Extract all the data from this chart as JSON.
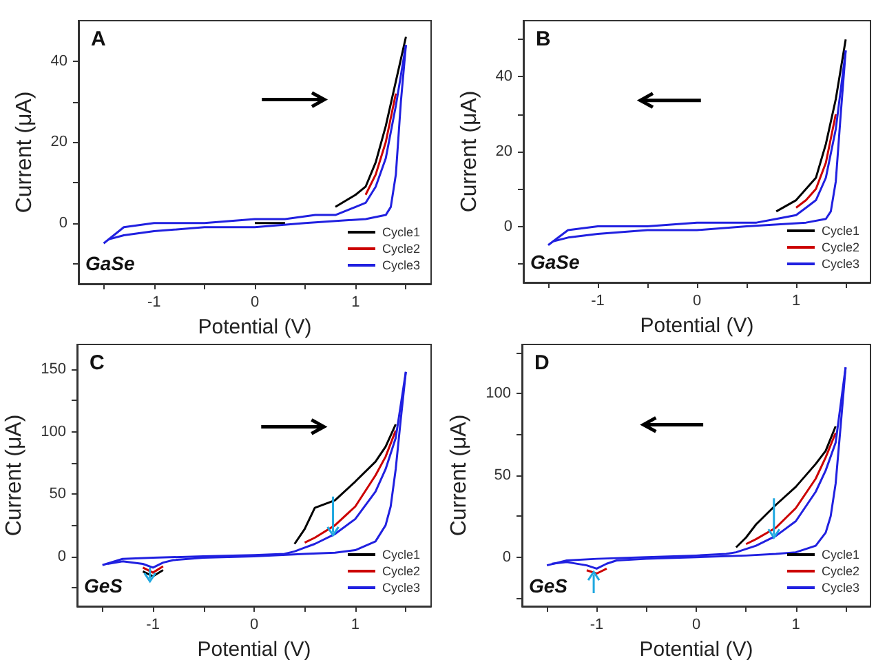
{
  "chart_data": [
    {
      "type": "line",
      "xlabel": "Potential (V)",
      "ylabel": "Current (μA)",
      "annotations": [
        "A",
        "GaSe"
      ],
      "legend": "bottom right",
      "marker": "none",
      "xlim": [
        -1.75,
        1.75
      ],
      "ylim": [
        -15,
        50
      ],
      "xticks": [
        {
          "value": -1.5,
          "label": null
        },
        -1,
        {
          "value": -0.5,
          "label": null
        },
        0,
        {
          "value": 0.5,
          "label": null
        },
        1,
        {
          "value": 1.5,
          "label": null
        }
      ],
      "yticks": [
        {
          "value": -10,
          "label": null
        },
        0,
        {
          "value": 10,
          "label": null
        },
        20,
        {
          "value": 30,
          "label": null
        },
        40
      ],
      "series": [
        {
          "name": "Cycle1",
          "color": "#000000",
          "x": [
            0,
            0.3,
            0.5,
            0.8,
            1.0,
            1.1,
            1.2,
            1.3,
            1.4,
            1.5
          ],
          "values": [
            0,
            0,
            null,
            4,
            7,
            9,
            15,
            24,
            35,
            46
          ]
        },
        {
          "name": "Cycle2",
          "color": "#cc0000",
          "x": [
            1.1,
            1.2,
            1.3,
            1.4
          ],
          "values": [
            7,
            12,
            20,
            32
          ]
        },
        {
          "name": "Cycle3",
          "color": "#2020e0",
          "x": [
            -1.5,
            -1.3,
            -1,
            -0.5,
            0,
            0.3,
            0.6,
            0.8,
            1.0,
            1.1,
            1.2,
            1.3,
            1.4,
            1.5
          ],
          "values": [
            -5,
            -1,
            0,
            0,
            1,
            1,
            2,
            2,
            4,
            5,
            9,
            16,
            29,
            44
          ]
        },
        {
          "color": "#2020e0",
          "x": [
            1.5,
            1.45,
            1.4,
            1.35,
            1.3,
            1.1,
            0.5,
            0,
            -0.5,
            -1,
            -1.3,
            -1.45
          ],
          "values": [
            44,
            30,
            12,
            4,
            2,
            1,
            0,
            -1,
            -1,
            -2,
            -3,
            -4
          ]
        }
      ]
    },
    {
      "type": "line",
      "xlabel": "Potential (V)",
      "ylabel": "Current (μA)",
      "annotations": [
        "B",
        "GaSe"
      ],
      "legend": "bottom right",
      "marker": "none",
      "xlim": [
        -1.75,
        1.75
      ],
      "ylim": [
        -15,
        55
      ],
      "xticks": [
        {
          "value": -1.5,
          "label": null
        },
        -1,
        {
          "value": -0.5,
          "label": null
        },
        0,
        {
          "value": 0.5,
          "label": null
        },
        1,
        {
          "value": 1.5,
          "label": null
        }
      ],
      "yticks": [
        {
          "value": -10,
          "label": null
        },
        0,
        {
          "value": 10,
          "label": null
        },
        20,
        {
          "value": 30,
          "label": null
        },
        40,
        {
          "value": 50,
          "label": null
        }
      ],
      "series": [
        {
          "name": "Cycle1",
          "color": "#000000",
          "x": [
            0.8,
            1.0,
            1.1,
            1.2,
            1.3,
            1.4,
            1.5
          ],
          "values": [
            4,
            7,
            10,
            13,
            22,
            34,
            50
          ]
        },
        {
          "name": "Cycle2",
          "color": "#cc0000",
          "x": [
            1.0,
            1.1,
            1.2,
            1.3,
            1.4
          ],
          "values": [
            5,
            7,
            10,
            17,
            30
          ]
        },
        {
          "name": "Cycle3",
          "color": "#2020e0",
          "x": [
            -1.5,
            -1.3,
            -1,
            -0.5,
            0,
            0.3,
            0.6,
            0.8,
            1.0,
            1.1,
            1.2,
            1.3,
            1.4,
            1.5
          ],
          "values": [
            -5,
            -1,
            0,
            0,
            1,
            1,
            1,
            2,
            3,
            5,
            7,
            13,
            26,
            47
          ]
        },
        {
          "color": "#2020e0",
          "x": [
            1.5,
            1.45,
            1.4,
            1.35,
            1.3,
            1.1,
            0.5,
            0,
            -0.5,
            -1,
            -1.3,
            -1.45
          ],
          "values": [
            47,
            30,
            12,
            4,
            2,
            1,
            0,
            -1,
            -1,
            -2,
            -3,
            -4
          ]
        }
      ]
    },
    {
      "type": "line",
      "xlabel": "Potential (V)",
      "ylabel": "Current (μA)",
      "annotations": [
        "C",
        "GeS"
      ],
      "legend": "bottom right",
      "marker": "none",
      "xlim": [
        -1.75,
        1.75
      ],
      "ylim": [
        -40,
        170
      ],
      "xticks": [
        {
          "value": -1.5,
          "label": null
        },
        -1,
        {
          "value": -0.5,
          "label": null
        },
        0,
        {
          "value": 0.5,
          "label": null
        },
        1,
        {
          "value": 1.5,
          "label": null
        }
      ],
      "yticks": [
        {
          "value": -25,
          "label": null
        },
        0,
        {
          "value": 25,
          "label": null
        },
        50,
        {
          "value": 75,
          "label": null
        },
        100,
        {
          "value": 125,
          "label": null
        },
        150
      ],
      "series": [
        {
          "name": "Cycle1",
          "color": "#000000",
          "x": [
            0.4,
            0.5,
            0.6,
            0.8,
            1.0,
            1.2,
            1.3,
            1.4
          ],
          "values": [
            10,
            22,
            39,
            45,
            60,
            76,
            88,
            106
          ]
        },
        {
          "name": "Cycle2",
          "color": "#cc0000",
          "x": [
            0.5,
            0.6,
            0.8,
            1.0,
            1.2,
            1.3,
            1.4
          ],
          "values": [
            11,
            15,
            25,
            40,
            65,
            80,
            101
          ]
        },
        {
          "color": "#000000",
          "x": [
            -1.1,
            -1.0,
            -0.9
          ],
          "values": [
            -12,
            -16,
            -11
          ]
        },
        {
          "color": "#cc0000",
          "x": [
            -1.1,
            -1.0,
            -0.9
          ],
          "values": [
            -9,
            -13,
            -8
          ]
        },
        {
          "name": "Cycle3",
          "color": "#2020e0",
          "x": [
            -1.5,
            -1.3,
            -1,
            -0.5,
            0,
            0.3,
            0.4,
            0.5,
            0.6,
            0.8,
            1.0,
            1.2,
            1.3,
            1.4,
            1.5
          ],
          "values": [
            -7,
            -2,
            -1,
            0,
            1,
            2,
            4,
            7,
            10,
            18,
            30,
            52,
            70,
            95,
            148
          ]
        },
        {
          "color": "#2020e0",
          "x": [
            1.5,
            1.45,
            1.4,
            1.35,
            1.3,
            1.2,
            1.0,
            0.8,
            0.5,
            0,
            -0.5,
            -0.8,
            -0.9,
            -1.0,
            -1.1,
            -1.3,
            -1.45
          ],
          "values": [
            148,
            110,
            70,
            40,
            25,
            12,
            5,
            3,
            2,
            0,
            -1,
            -3,
            -5,
            -9,
            -6,
            -4,
            -6
          ]
        }
      ]
    },
    {
      "type": "line",
      "xlabel": "Potential (V)",
      "ylabel": "Current (μA)",
      "annotations": [
        "D",
        "GeS"
      ],
      "legend": "bottom right",
      "marker": "none",
      "xlim": [
        -1.75,
        1.75
      ],
      "ylim": [
        -30,
        130
      ],
      "xticks": [
        {
          "value": -1.5,
          "label": null
        },
        -1,
        {
          "value": -0.5,
          "label": null
        },
        0,
        {
          "value": 0.5,
          "label": null
        },
        1,
        {
          "value": 1.5,
          "label": null
        }
      ],
      "yticks": [
        {
          "value": -25,
          "label": null
        },
        0,
        {
          "value": 25,
          "label": null
        },
        50,
        {
          "value": 75,
          "label": null
        },
        100,
        {
          "value": 125,
          "label": null
        }
      ],
      "series": [
        {
          "name": "Cycle1",
          "color": "#000000",
          "x": [
            0.4,
            0.5,
            0.6,
            0.8,
            1.0,
            1.2,
            1.3,
            1.4
          ],
          "values": [
            6,
            12,
            20,
            32,
            43,
            57,
            65,
            80
          ]
        },
        {
          "name": "Cycle2",
          "color": "#cc0000",
          "x": [
            0.5,
            0.6,
            0.8,
            1.0,
            1.2,
            1.3,
            1.4
          ],
          "values": [
            8,
            11,
            18,
            30,
            48,
            61,
            76
          ]
        },
        {
          "color": "#cc0000",
          "x": [
            -1.1,
            -1.0,
            -0.9
          ],
          "values": [
            -8,
            -10,
            -7
          ]
        },
        {
          "name": "Cycle3",
          "color": "#2020e0",
          "x": [
            -1.5,
            -1.3,
            -1,
            -0.5,
            0,
            0.3,
            0.4,
            0.5,
            0.6,
            0.8,
            1.0,
            1.2,
            1.3,
            1.4,
            1.5
          ],
          "values": [
            -5,
            -2,
            -1,
            0,
            1,
            2,
            3,
            5,
            7,
            13,
            22,
            40,
            53,
            70,
            116
          ]
        },
        {
          "color": "#2020e0",
          "x": [
            1.5,
            1.45,
            1.4,
            1.35,
            1.3,
            1.2,
            1.0,
            0.8,
            0.5,
            0,
            -0.5,
            -0.8,
            -0.9,
            -1.0,
            -1.1,
            -1.3,
            -1.45
          ],
          "values": [
            116,
            80,
            45,
            25,
            15,
            7,
            3,
            2,
            1,
            0,
            -1,
            -2,
            -4,
            -7,
            -5,
            -3,
            -4
          ]
        }
      ]
    }
  ]
}
